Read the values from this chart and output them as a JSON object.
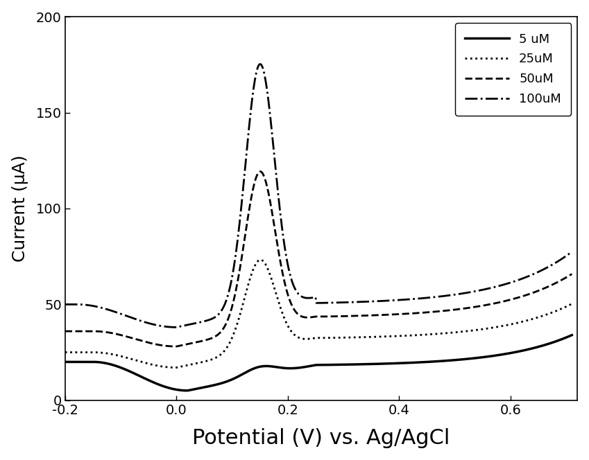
{
  "title": "",
  "xlabel": "Potential (V) vs. Ag/AgCl",
  "ylabel": "Current (μA)",
  "xlim": [
    -0.2,
    0.72
  ],
  "ylim": [
    0,
    200
  ],
  "xticks": [
    -0.2,
    0.0,
    0.2,
    0.4,
    0.6
  ],
  "xtick_labels": [
    "-0.2",
    "0.0",
    "0.2",
    "0.4",
    "0.6"
  ],
  "yticks": [
    0,
    50,
    100,
    150,
    200
  ],
  "legend_labels": [
    "5 uM",
    "25uM",
    "50uM",
    "100uM"
  ],
  "background_color": "#ffffff",
  "line_color": "#000000",
  "linewidth_solid": 2.5,
  "linewidth_other": 2.0,
  "xlabel_fontsize": 22,
  "ylabel_fontsize": 18,
  "tick_fontsize": 14,
  "legend_fontsize": 13
}
